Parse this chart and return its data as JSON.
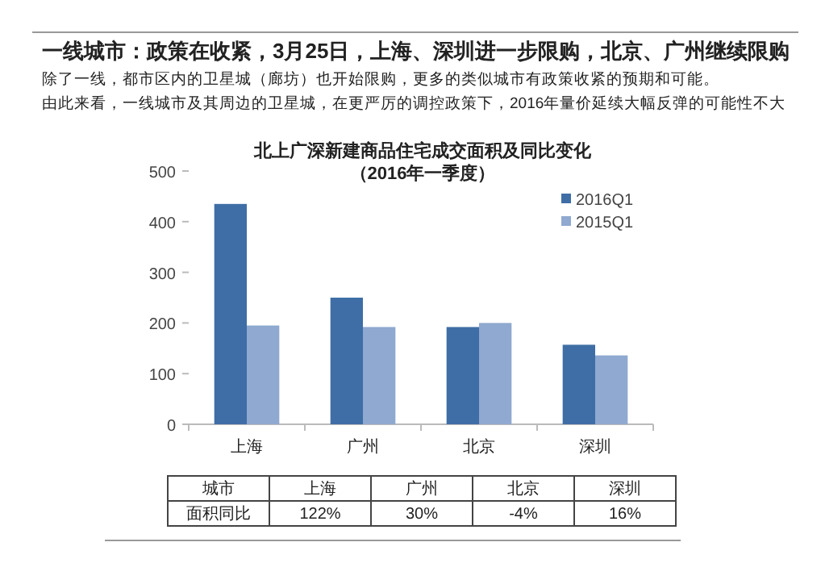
{
  "chart_data": {
    "type": "bar",
    "title": "北上广深新建商品住宅成交面积及同比变化",
    "subtitle": "（2016年一季度）",
    "categories": [
      "上海",
      "广州",
      "北京",
      "深圳"
    ],
    "series": [
      {
        "name": "2016Q1",
        "color": "#3f6ea6",
        "values": [
          435,
          250,
          192,
          157
        ]
      },
      {
        "name": "2015Q1",
        "color": "#8fa9d0",
        "values": [
          195,
          192,
          200,
          136
        ]
      }
    ],
    "ylim": [
      0,
      500
    ],
    "yticks": [
      0,
      100,
      200,
      300,
      400,
      500
    ],
    "grid": false,
    "legend": "top right",
    "annotations": [
      "一线城市：政策在收紧，3月25日，上海、深圳进一步限购，北京、广州继续限购",
      "除了一线，都市区内的卫星城（廊坊）也开始限购，更多的类似城市有政策收紧的预期和可能。",
      "由此来看，一线城市及其周边的卫星城，在更严厉的调控政策下，2016年量价延续大幅反弹的可能性不大",
      "城市",
      "面积同比",
      "122%",
      "30%",
      "-4%",
      "16%"
    ]
  }
}
